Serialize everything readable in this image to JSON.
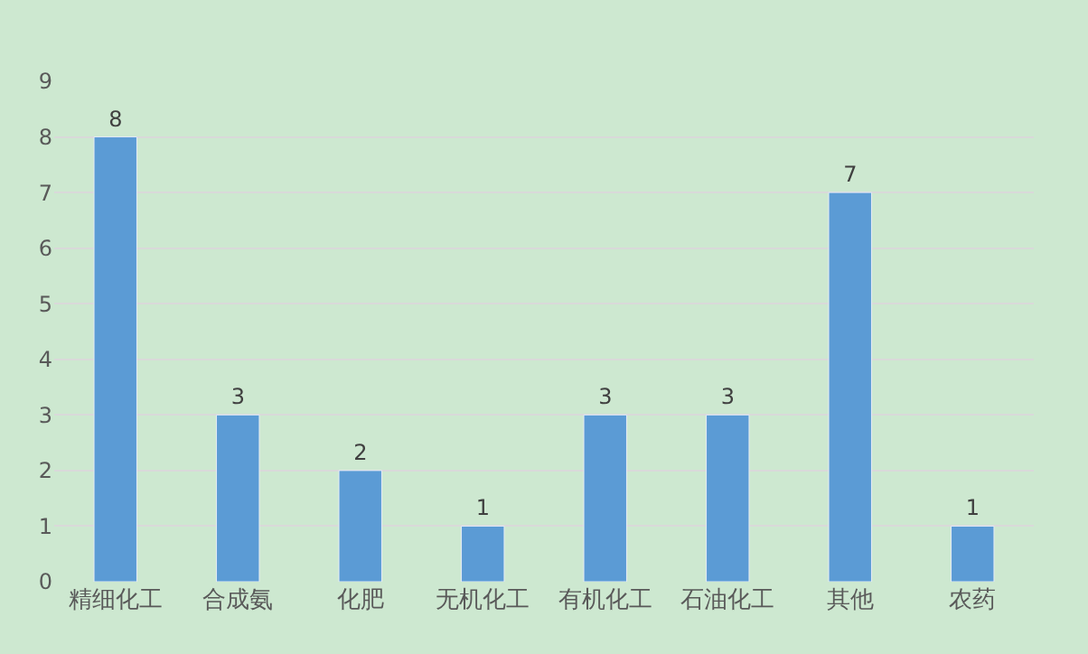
{
  "chart_data": {
    "type": "bar",
    "categories": [
      "精细化工",
      "合成氨",
      "化肥",
      "无机化工",
      "有机化工",
      "石油化工",
      "其他",
      "农药"
    ],
    "values": [
      8,
      3,
      2,
      1,
      3,
      3,
      7,
      1
    ],
    "color": "#5b9bd5",
    "ylim": [
      0,
      9
    ],
    "yticks": [
      0,
      1,
      2,
      3,
      4,
      5,
      6,
      7,
      8,
      9
    ],
    "grid": "y",
    "data_labels": true,
    "legend": false
  }
}
